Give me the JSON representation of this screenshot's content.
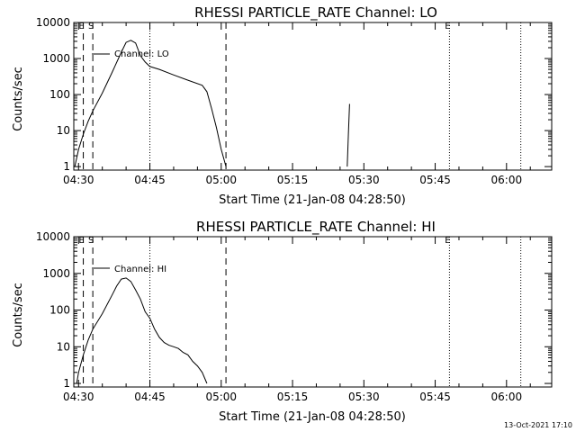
{
  "stamp": "13-Oct-2021 17:10",
  "chart_data": [
    {
      "type": "line",
      "title": "RHESSI PARTICLE_RATE Channel: LO",
      "xlabel": "Start Time (21-Jan-08 04:28:50)",
      "ylabel": "Counts/sec",
      "yscale": "log",
      "ylim": [
        0.8,
        10000
      ],
      "xlim": [
        "04:29:00",
        "06:09:30"
      ],
      "x_ticks": [
        "04:30",
        "04:45",
        "05:00",
        "05:15",
        "05:30",
        "05:45",
        "06:00"
      ],
      "y_ticks": [
        "1",
        "10",
        "100",
        "1000",
        "10000"
      ],
      "legend": {
        "entry": "Channel: LO",
        "placement": "top-left"
      },
      "markers": [
        {
          "time": "04:31",
          "style": "dashed",
          "label": "E"
        },
        {
          "time": "04:33",
          "style": "dashed",
          "label": "S"
        },
        {
          "time": "04:45",
          "style": "dotted",
          "label": ""
        },
        {
          "time": "05:01",
          "style": "dashed",
          "label": ""
        },
        {
          "time": "05:48",
          "style": "dotted",
          "label": "E"
        },
        {
          "time": "06:03",
          "style": "dotted",
          "label": ""
        }
      ],
      "series": [
        {
          "name": "Channel: LO",
          "segments": [
            [
              [
                "04:29:12",
                1
              ],
              [
                "04:30:00",
                3
              ],
              [
                "04:31:00",
                8
              ],
              [
                "04:32:00",
                18
              ],
              [
                "04:33:00",
                35
              ],
              [
                "04:35:00",
                110
              ],
              [
                "04:37:00",
                400
              ],
              [
                "04:39:00",
                1500
              ],
              [
                "04:40:00",
                2800
              ],
              [
                "04:41:00",
                3200
              ],
              [
                "04:42:00",
                2700
              ],
              [
                "04:43:00",
                1200
              ],
              [
                "04:44:00",
                800
              ],
              [
                "04:45:00",
                600
              ],
              [
                "04:47:00",
                500
              ],
              [
                "04:50:00",
                350
              ],
              [
                "04:53:00",
                250
              ],
              [
                "04:56:00",
                180
              ],
              [
                "04:57:00",
                120
              ],
              [
                "04:58:00",
                40
              ],
              [
                "04:59:00",
                12
              ],
              [
                "05:00:00",
                3
              ],
              [
                "05:01:00",
                1
              ]
            ],
            [
              [
                "05:26:30",
                1
              ],
              [
                "05:26:45",
                8
              ],
              [
                "05:27:00",
                55
              ]
            ]
          ]
        }
      ]
    },
    {
      "type": "line",
      "title": "RHESSI PARTICLE_RATE Channel: HI",
      "xlabel": "Start Time (21-Jan-08 04:28:50)",
      "ylabel": "Counts/sec",
      "yscale": "log",
      "ylim": [
        0.8,
        10000
      ],
      "xlim": [
        "04:29:00",
        "06:09:30"
      ],
      "x_ticks": [
        "04:30",
        "04:45",
        "05:00",
        "05:15",
        "05:30",
        "05:45",
        "06:00"
      ],
      "y_ticks": [
        "1",
        "10",
        "100",
        "1000",
        "10000"
      ],
      "legend": {
        "entry": "Channel: HI",
        "placement": "top-left"
      },
      "markers": [
        {
          "time": "04:31",
          "style": "dashed",
          "label": "E"
        },
        {
          "time": "04:33",
          "style": "dashed",
          "label": "S"
        },
        {
          "time": "04:45",
          "style": "dotted",
          "label": ""
        },
        {
          "time": "05:01",
          "style": "dashed",
          "label": ""
        },
        {
          "time": "05:48",
          "style": "dotted",
          "label": "E"
        },
        {
          "time": "06:03",
          "style": "dotted",
          "label": ""
        }
      ],
      "series": [
        {
          "name": "Channel: HI",
          "segments": [
            [
              [
                "04:29:36",
                1
              ],
              [
                "04:30:00",
                2
              ],
              [
                "04:31:00",
                6
              ],
              [
                "04:32:00",
                15
              ],
              [
                "04:33:00",
                30
              ],
              [
                "04:35:00",
                80
              ],
              [
                "04:37:00",
                250
              ],
              [
                "04:38:00",
                450
              ],
              [
                "04:39:00",
                700
              ],
              [
                "04:40:00",
                750
              ],
              [
                "04:41:00",
                600
              ],
              [
                "04:42:00",
                350
              ],
              [
                "04:43:00",
                200
              ],
              [
                "04:44:00",
                90
              ],
              [
                "04:45:00",
                60
              ],
              [
                "04:46:00",
                30
              ],
              [
                "04:47:00",
                18
              ],
              [
                "04:48:00",
                13
              ],
              [
                "04:49:00",
                11
              ],
              [
                "04:50:00",
                10
              ],
              [
                "04:51:00",
                9
              ],
              [
                "04:52:00",
                7
              ],
              [
                "04:53:00",
                6
              ],
              [
                "04:54:00",
                4
              ],
              [
                "04:55:00",
                3
              ],
              [
                "04:56:00",
                2
              ],
              [
                "04:57:00",
                1
              ]
            ]
          ]
        }
      ]
    }
  ]
}
